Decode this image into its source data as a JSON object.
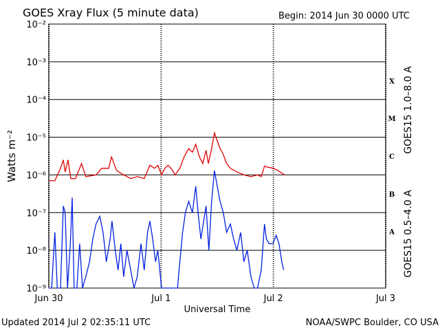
{
  "chart_data": {
    "type": "line",
    "title": "GOES Xray Flux (5 minute data)",
    "subtitle": "Begin:  2014 Jun 30 0000 UTC",
    "x_label": "Universal Time",
    "y_label": "Watts m⁻²",
    "footer_left": "Updated 2014 Jul  2 02:35:11 UTC",
    "footer_right": "NOAA/SWPC Boulder, CO USA",
    "yscale": "log",
    "grid": true,
    "xlim": [
      0,
      72
    ],
    "xticks": [
      {
        "value": 0,
        "label": "Jun 30"
      },
      {
        "value": 24,
        "label": "Jul 1"
      },
      {
        "value": 48,
        "label": "Jul 2"
      },
      {
        "value": 72,
        "label": "Jul 3"
      }
    ],
    "ylim": [
      1e-09,
      0.01
    ],
    "yticks": [
      {
        "value": 1e-09,
        "label": "10⁻⁹"
      },
      {
        "value": 1e-08,
        "label": "10⁻⁸"
      },
      {
        "value": 1e-07,
        "label": "10⁻⁷"
      },
      {
        "value": 1e-06,
        "label": "10⁻⁶"
      },
      {
        "value": 1e-05,
        "label": "10⁻⁵"
      },
      {
        "value": 0.0001,
        "label": "10⁻⁴"
      },
      {
        "value": 0.001,
        "label": "10⁻³"
      },
      {
        "value": 0.01,
        "label": "10⁻²"
      }
    ],
    "flare_classes": [
      {
        "value": 1e-08,
        "label": "A"
      },
      {
        "value": 1e-07,
        "label": "B"
      },
      {
        "value": 1e-06,
        "label": "C"
      },
      {
        "value": 1e-05,
        "label": "M"
      },
      {
        "value": 0.0001,
        "label": "X"
      }
    ],
    "series": [
      {
        "name": "GOES15 1.0–8.0 A",
        "color": "#e00000",
        "x": [
          0,
          1.3,
          2.5,
          3.1,
          3.5,
          4.1,
          4.7,
          5.7,
          7.0,
          7.9,
          10.1,
          11.3,
          12.8,
          13.4,
          14.5,
          16.0,
          17.5,
          18.9,
          20.4,
          21.6,
          22.6,
          23.3,
          24.1,
          24.8,
          25.5,
          26.3,
          27.0,
          28.0,
          28.9,
          29.9,
          30.7,
          31.4,
          32.2,
          32.9,
          33.6,
          34.1,
          34.8,
          35.4,
          36.0,
          36.6,
          37.3,
          38.0,
          38.8,
          40.2,
          41.7,
          43.2,
          44.6,
          45.4,
          46.1,
          46.8,
          48.0,
          49.0,
          50.4
        ],
        "values": [
          7e-07,
          7e-07,
          1.5e-06,
          2.5e-06,
          1.2e-06,
          2.5e-06,
          8e-07,
          8e-07,
          2e-06,
          9e-07,
          1e-06,
          1.5e-06,
          1.5e-06,
          3e-06,
          1.3e-06,
          1e-06,
          8e-07,
          9e-07,
          8e-07,
          1.8e-06,
          1.5e-06,
          1.8e-06,
          1e-06,
          1.5e-06,
          1.8e-06,
          1.4e-06,
          1e-06,
          1.5e-06,
          3e-06,
          5e-06,
          4e-06,
          6.5e-06,
          3e-06,
          2e-06,
          4.5e-06,
          2e-06,
          5e-06,
          1.3e-05,
          8e-06,
          5e-06,
          3.5e-06,
          2e-06,
          1.5e-06,
          1.2e-06,
          1e-06,
          9e-07,
          1e-06,
          9e-07,
          1.7e-06,
          1.6e-06,
          1.5e-06,
          1.3e-06,
          1e-06
        ]
      },
      {
        "name": "GOES15 0.5–4.0 A",
        "color": "#0020e0",
        "x": [
          0,
          0.6,
          1.3,
          1.8,
          2.5,
          3.1,
          3.5,
          4.0,
          4.6,
          5.0,
          5.4,
          6.0,
          6.6,
          7.2,
          7.9,
          8.7,
          9.4,
          10.1,
          10.9,
          11.6,
          12.3,
          13.1,
          13.5,
          14.2,
          14.8,
          15.4,
          16.0,
          16.7,
          17.5,
          18.2,
          18.9,
          19.7,
          20.4,
          21.1,
          21.6,
          22.2,
          22.8,
          23.3,
          24.1,
          24.8,
          26.3,
          27.5,
          28.0,
          28.6,
          29.2,
          29.9,
          30.7,
          31.4,
          31.9,
          32.5,
          33.0,
          33.6,
          34.2,
          34.8,
          35.4,
          36.0,
          36.6,
          37.3,
          38.0,
          38.8,
          39.5,
          40.2,
          41.0,
          41.7,
          42.4,
          43.2,
          43.9,
          44.6,
          45.4,
          46.1,
          46.5,
          47.1,
          47.9,
          48.6,
          49.2,
          49.8,
          50.2
        ],
        "values": [
          1e-09,
          1e-09,
          3e-08,
          1e-09,
          1e-09,
          1.5e-07,
          1e-07,
          1e-09,
          1.5e-08,
          2.5e-07,
          1e-09,
          1e-09,
          1.5e-08,
          1e-09,
          2e-09,
          5e-09,
          2e-08,
          5e-08,
          8e-08,
          3e-08,
          5e-09,
          2e-08,
          6e-08,
          1e-08,
          3e-09,
          1.5e-08,
          2e-09,
          1e-08,
          3e-09,
          1e-09,
          2e-09,
          1.5e-08,
          3e-09,
          3e-08,
          6e-08,
          2e-08,
          5e-09,
          1e-08,
          1e-09,
          1e-09,
          1e-09,
          1e-09,
          5e-09,
          3e-08,
          1e-07,
          2e-07,
          1e-07,
          5e-07,
          1e-07,
          2e-08,
          5e-08,
          1.5e-07,
          1e-08,
          2e-07,
          1.3e-06,
          5e-07,
          2e-07,
          1e-07,
          3e-08,
          5e-08,
          2e-08,
          1e-08,
          3e-08,
          5e-09,
          1e-08,
          2e-09,
          1e-09,
          1e-09,
          3e-09,
          5e-08,
          2e-08,
          1.5e-08,
          1.5e-08,
          2.5e-08,
          1.5e-08,
          5e-09,
          3e-09
        ]
      }
    ]
  }
}
